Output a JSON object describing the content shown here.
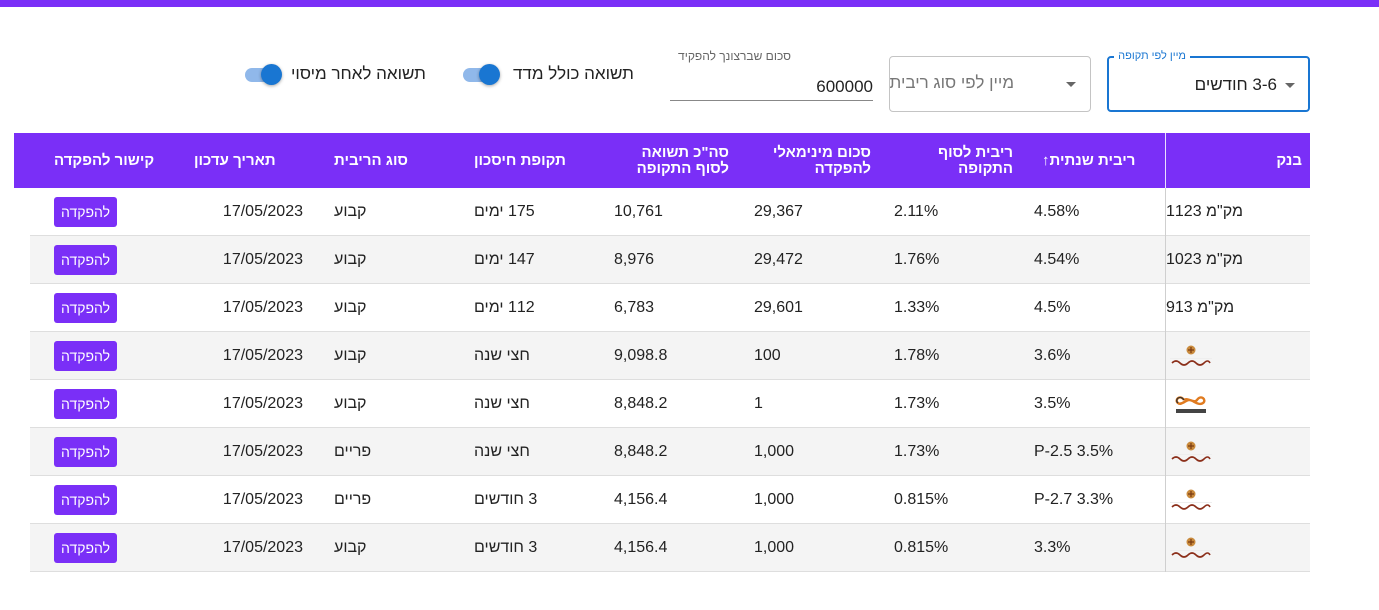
{
  "filters": {
    "period_label": "מיין לפי תקופה",
    "period_value": "3-6 חודשים",
    "rate_type_placeholder": "מיין לפי סוג ריבית",
    "deposit_label": "סכום שברצונך להפקיד",
    "deposit_value": "600000",
    "toggle_madad_label": "תשואה כולל מדד",
    "toggle_tax_label": "תשואה לאחר מיסוי"
  },
  "colors": {
    "accent": "#7a2ff7",
    "focus_blue": "#1976d2"
  },
  "table": {
    "headers": {
      "bank": "בנק",
      "annual_rate": "ריבית שנתית",
      "end_rate": "ריבית לסוף התקופה",
      "min_amount": "סכום מינימאלי להפקדה",
      "total_return": "סה\"כ תשואה לסוף התקופה",
      "period": "תקופת חיסכון",
      "rate_type": "סוג הריבית",
      "update_date": "תאריך עדכון",
      "deposit_link": "קישור להפקדה"
    },
    "sort_icon": "arrow-up-icon",
    "rows": [
      {
        "bank": "מק\"מ 1123",
        "logo": "",
        "annual_rate": "4.58%",
        "end_rate": "2.11%",
        "min_amount": "29,367",
        "total_return": "10,761",
        "period": "175 ימים",
        "rate_type": "קבוע",
        "update_date": "17/05/2023",
        "button": "להפקדה"
      },
      {
        "bank": "מק\"מ 1023",
        "logo": "",
        "annual_rate": "4.54%",
        "end_rate": "1.76%",
        "min_amount": "29,472",
        "total_return": "8,976",
        "period": "147 ימים",
        "rate_type": "קבוע",
        "update_date": "17/05/2023",
        "button": "להפקדה"
      },
      {
        "bank": "מק\"מ 913",
        "logo": "",
        "annual_rate": "4.5%",
        "end_rate": "1.33%",
        "min_amount": "29,601",
        "total_return": "6,783",
        "period": "112 ימים",
        "rate_type": "קבוע",
        "update_date": "17/05/2023",
        "button": "להפקדה"
      },
      {
        "bank": "",
        "logo": "bank-jerusalem-logo",
        "logo_text": "בנק ירושלים",
        "annual_rate": "3.6%",
        "end_rate": "1.78%",
        "min_amount": "100",
        "total_return": "9,098.8",
        "period": "חצי שנה",
        "rate_type": "קבוע",
        "update_date": "17/05/2023",
        "button": "להפקדה"
      },
      {
        "bank": "",
        "logo": "mizrahi-tefahot-logo",
        "logo_text": "מזרחי טפחות",
        "annual_rate": "3.5%",
        "end_rate": "1.73%",
        "min_amount": "1",
        "total_return": "8,848.2",
        "period": "חצי שנה",
        "rate_type": "קבוע",
        "update_date": "17/05/2023",
        "button": "להפקדה"
      },
      {
        "bank": "",
        "logo": "bank-jerusalem-logo",
        "logo_text": "בנק ירושלים",
        "annual_rate": "P-2.5 3.5%",
        "end_rate": "1.73%",
        "min_amount": "1,000",
        "total_return": "8,848.2",
        "period": "חצי שנה",
        "rate_type": "פריים",
        "update_date": "17/05/2023",
        "button": "להפקדה"
      },
      {
        "bank": "",
        "logo": "bank-jerusalem-logo",
        "logo_text": "בנק ירושלים",
        "annual_rate": "P-2.7 3.3%",
        "end_rate": "0.815%",
        "min_amount": "1,000",
        "total_return": "4,156.4",
        "period": "3 חודשים",
        "rate_type": "פריים",
        "update_date": "17/05/2023",
        "button": "להפקדה"
      },
      {
        "bank": "",
        "logo": "bank-jerusalem-logo",
        "logo_text": "בנק ירושלים",
        "annual_rate": "3.3%",
        "end_rate": "0.815%",
        "min_amount": "1,000",
        "total_return": "4,156.4",
        "period": "3 חודשים",
        "rate_type": "קבוע",
        "update_date": "17/05/2023",
        "button": "להפקדה"
      }
    ]
  }
}
